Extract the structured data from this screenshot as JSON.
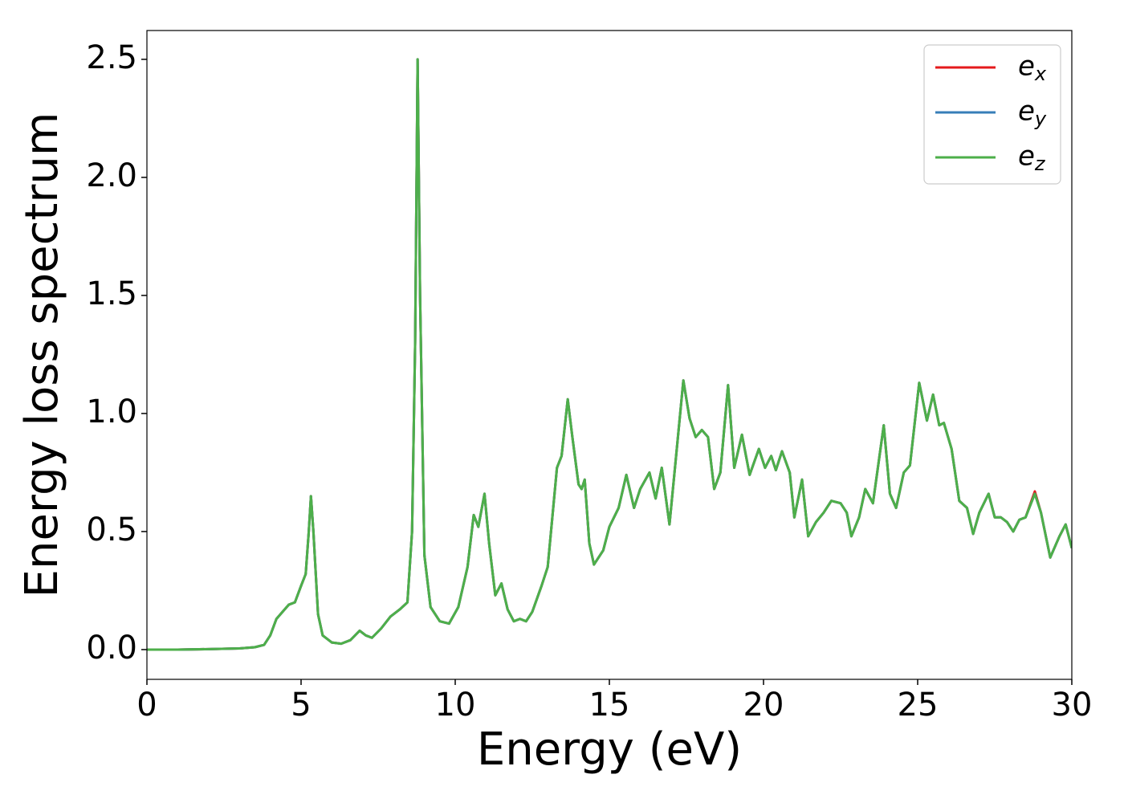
{
  "chart_data": {
    "type": "line",
    "xlabel": "Energy (eV)",
    "ylabel": "Energy loss spectrum",
    "x": [
      0,
      1,
      2,
      3,
      3.5,
      3.8,
      4,
      4.2,
      4.4,
      4.6,
      4.8,
      5,
      5.15,
      5.25,
      5.32,
      5.4,
      5.55,
      5.7,
      6,
      6.3,
      6.6,
      6.9,
      7.1,
      7.3,
      7.6,
      7.9,
      8.2,
      8.45,
      8.6,
      8.7,
      8.78,
      8.86,
      9,
      9.2,
      9.5,
      9.8,
      10.1,
      10.4,
      10.6,
      10.75,
      10.95,
      11.1,
      11.3,
      11.5,
      11.7,
      11.9,
      12.1,
      12.3,
      12.5,
      12.8,
      13,
      13.3,
      13.45,
      13.65,
      13.8,
      14,
      14.1,
      14.2,
      14.35,
      14.5,
      14.8,
      15,
      15.3,
      15.55,
      15.8,
      16,
      16.3,
      16.5,
      16.7,
      16.95,
      17.15,
      17.4,
      17.6,
      17.8,
      18,
      18.2,
      18.4,
      18.6,
      18.85,
      19.05,
      19.3,
      19.55,
      19.85,
      20.05,
      20.25,
      20.4,
      20.6,
      20.85,
      21,
      21.25,
      21.45,
      21.7,
      21.95,
      22.2,
      22.5,
      22.7,
      22.85,
      23.1,
      23.3,
      23.55,
      23.9,
      24.1,
      24.3,
      24.55,
      24.75,
      25.05,
      25.3,
      25.5,
      25.7,
      25.85,
      26.1,
      26.35,
      26.6,
      26.8,
      27,
      27.3,
      27.5,
      27.7,
      27.9,
      28.1,
      28.3,
      28.5,
      28.8,
      29,
      29.3,
      29.6,
      29.8,
      30
    ],
    "series": [
      {
        "name": "ex",
        "color": "#e41a1c",
        "values": [
          0,
          0,
          0.002,
          0.005,
          0.01,
          0.02,
          0.06,
          0.13,
          0.16,
          0.19,
          0.2,
          0.27,
          0.32,
          0.5,
          0.65,
          0.5,
          0.15,
          0.06,
          0.03,
          0.025,
          0.04,
          0.08,
          0.06,
          0.05,
          0.09,
          0.14,
          0.17,
          0.2,
          0.5,
          1.3,
          2.5,
          1.5,
          0.4,
          0.18,
          0.12,
          0.11,
          0.18,
          0.35,
          0.57,
          0.52,
          0.66,
          0.45,
          0.23,
          0.28,
          0.17,
          0.12,
          0.13,
          0.12,
          0.16,
          0.27,
          0.35,
          0.77,
          0.82,
          1.06,
          0.9,
          0.7,
          0.68,
          0.72,
          0.45,
          0.36,
          0.42,
          0.52,
          0.6,
          0.74,
          0.6,
          0.68,
          0.75,
          0.64,
          0.77,
          0.53,
          0.8,
          1.14,
          0.98,
          0.9,
          0.93,
          0.9,
          0.68,
          0.75,
          1.12,
          0.77,
          0.91,
          0.74,
          0.85,
          0.77,
          0.82,
          0.76,
          0.84,
          0.75,
          0.56,
          0.72,
          0.48,
          0.54,
          0.58,
          0.63,
          0.62,
          0.58,
          0.48,
          0.56,
          0.68,
          0.62,
          0.95,
          0.66,
          0.6,
          0.75,
          0.78,
          1.13,
          0.97,
          1.08,
          0.95,
          0.96,
          0.85,
          0.63,
          0.6,
          0.49,
          0.58,
          0.66,
          0.56,
          0.56,
          0.54,
          0.5,
          0.55,
          0.56,
          0.67,
          0.58,
          0.39,
          0.48,
          0.53,
          0.43
        ]
      },
      {
        "name": "ey",
        "color": "#377eb8",
        "values": [
          0,
          0,
          0.002,
          0.005,
          0.01,
          0.02,
          0.06,
          0.13,
          0.16,
          0.19,
          0.2,
          0.27,
          0.32,
          0.5,
          0.65,
          0.5,
          0.15,
          0.06,
          0.03,
          0.025,
          0.04,
          0.08,
          0.06,
          0.05,
          0.09,
          0.14,
          0.17,
          0.2,
          0.5,
          1.3,
          2.5,
          1.5,
          0.4,
          0.18,
          0.12,
          0.11,
          0.18,
          0.35,
          0.57,
          0.52,
          0.66,
          0.45,
          0.23,
          0.28,
          0.17,
          0.12,
          0.13,
          0.12,
          0.16,
          0.27,
          0.35,
          0.77,
          0.82,
          1.06,
          0.9,
          0.7,
          0.68,
          0.72,
          0.45,
          0.36,
          0.42,
          0.52,
          0.6,
          0.74,
          0.6,
          0.68,
          0.75,
          0.64,
          0.77,
          0.53,
          0.8,
          1.14,
          0.98,
          0.9,
          0.93,
          0.9,
          0.68,
          0.75,
          1.12,
          0.77,
          0.91,
          0.74,
          0.85,
          0.77,
          0.82,
          0.76,
          0.84,
          0.75,
          0.56,
          0.72,
          0.48,
          0.54,
          0.58,
          0.63,
          0.62,
          0.58,
          0.48,
          0.56,
          0.68,
          0.62,
          0.95,
          0.66,
          0.6,
          0.75,
          0.78,
          1.13,
          0.97,
          1.08,
          0.95,
          0.96,
          0.85,
          0.63,
          0.6,
          0.49,
          0.58,
          0.66,
          0.56,
          0.56,
          0.54,
          0.5,
          0.55,
          0.56,
          0.66,
          0.58,
          0.39,
          0.48,
          0.53,
          0.43
        ]
      },
      {
        "name": "ez",
        "color": "#4daf4a",
        "values": [
          0,
          0,
          0.002,
          0.005,
          0.01,
          0.02,
          0.06,
          0.13,
          0.16,
          0.19,
          0.2,
          0.27,
          0.32,
          0.5,
          0.65,
          0.5,
          0.15,
          0.06,
          0.03,
          0.025,
          0.04,
          0.08,
          0.06,
          0.05,
          0.09,
          0.14,
          0.17,
          0.2,
          0.5,
          1.3,
          2.5,
          1.5,
          0.4,
          0.18,
          0.12,
          0.11,
          0.18,
          0.35,
          0.57,
          0.52,
          0.66,
          0.45,
          0.23,
          0.28,
          0.17,
          0.12,
          0.13,
          0.12,
          0.16,
          0.27,
          0.35,
          0.77,
          0.82,
          1.06,
          0.9,
          0.7,
          0.68,
          0.72,
          0.45,
          0.36,
          0.42,
          0.52,
          0.6,
          0.74,
          0.6,
          0.68,
          0.75,
          0.64,
          0.77,
          0.53,
          0.8,
          1.14,
          0.98,
          0.9,
          0.93,
          0.9,
          0.68,
          0.75,
          1.12,
          0.77,
          0.91,
          0.74,
          0.85,
          0.77,
          0.82,
          0.76,
          0.84,
          0.75,
          0.56,
          0.72,
          0.48,
          0.54,
          0.58,
          0.63,
          0.62,
          0.58,
          0.48,
          0.56,
          0.68,
          0.62,
          0.95,
          0.66,
          0.6,
          0.75,
          0.78,
          1.13,
          0.97,
          1.08,
          0.95,
          0.96,
          0.85,
          0.63,
          0.6,
          0.49,
          0.58,
          0.66,
          0.56,
          0.56,
          0.54,
          0.5,
          0.55,
          0.56,
          0.66,
          0.58,
          0.39,
          0.48,
          0.53,
          0.43
        ]
      }
    ],
    "xlim": [
      0,
      30
    ],
    "ylim": [
      -0.126,
      2.622
    ],
    "xticks": [
      0,
      5,
      10,
      15,
      20,
      25,
      30
    ],
    "yticks": [
      {
        "value": 0,
        "label": "0.0"
      },
      0.5,
      {
        "value": 1,
        "label": "1.0"
      },
      1.5,
      {
        "value": 2,
        "label": "2.0"
      },
      2.5
    ],
    "grid": false,
    "legend": "upper right"
  }
}
